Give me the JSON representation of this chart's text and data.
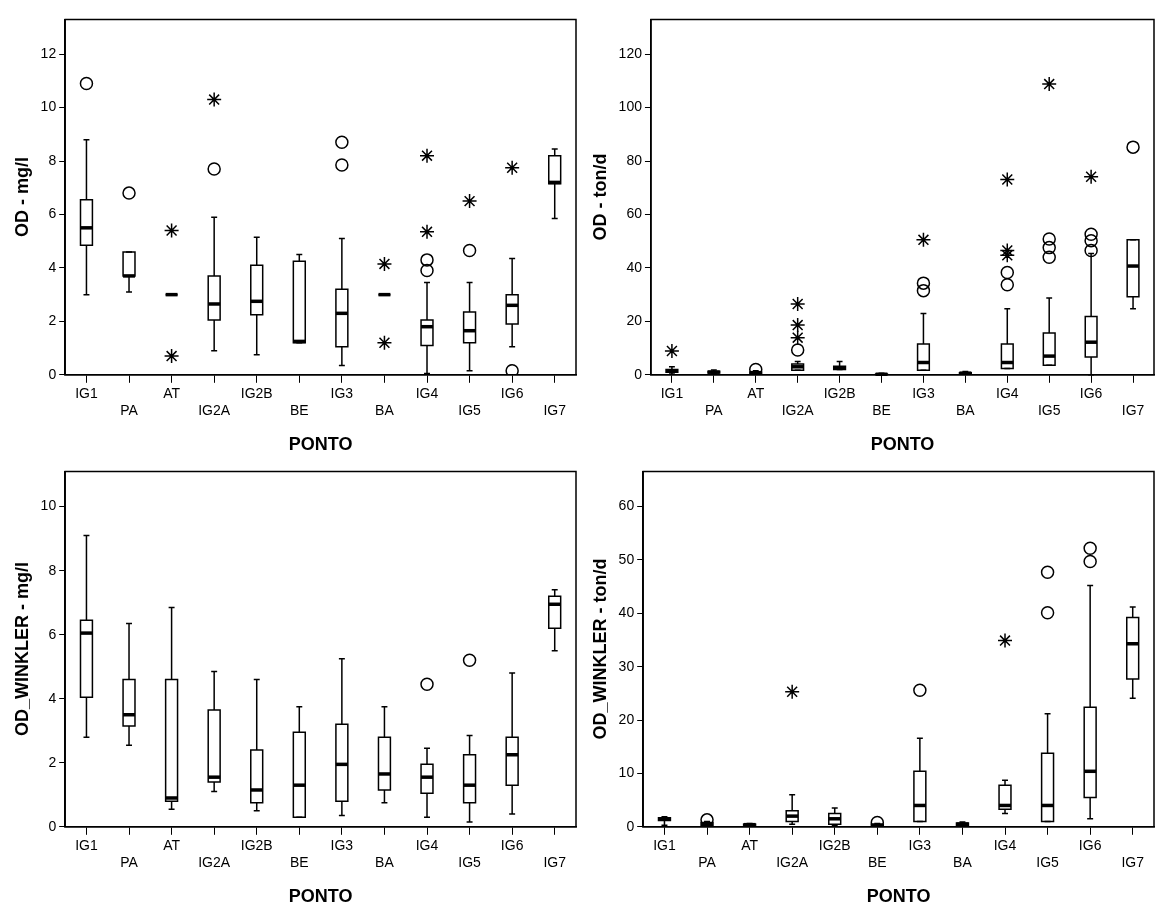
{
  "chart_data": [
    {
      "type": "box",
      "xlabel": "PONTO",
      "ylabel": "OD - mg/l",
      "categories": [
        "IG1",
        "PA",
        "AT",
        "IG2A",
        "IG2B",
        "BE",
        "IG3",
        "BA",
        "IG4",
        "IG5",
        "IG6",
        "IG7"
      ],
      "ylim": [
        0,
        13.3
      ],
      "yticks": [
        0,
        2,
        4,
        6,
        8,
        10,
        12
      ],
      "boxes": [
        {
          "low": 3.0,
          "q1": 4.85,
          "median": 5.5,
          "q3": 6.55,
          "high": 8.8,
          "outliers": [
            10.9
          ]
        },
        {
          "low": 3.1,
          "q1": 3.7,
          "median": 3.7,
          "q3": 4.6,
          "high": 4.6,
          "outliers": [
            6.8
          ]
        },
        {
          "low": 3.0,
          "q1": 3.0,
          "median": 3.0,
          "q3": 3.0,
          "high": 3.0
        },
        {
          "low": 0.9,
          "q1": 2.05,
          "median": 2.65,
          "q3": 3.7,
          "high": 5.9,
          "outliers": [
            7.7
          ]
        },
        {
          "low": 0.75,
          "q1": 2.25,
          "median": 2.75,
          "q3": 4.1,
          "high": 5.15
        },
        {
          "low": 1.2,
          "q1": 1.2,
          "median": 1.25,
          "q3": 4.25,
          "high": 4.5
        },
        {
          "low": 0.35,
          "q1": 1.05,
          "median": 2.3,
          "q3": 3.2,
          "high": 5.1,
          "outliers": [
            8.7,
            7.85
          ]
        },
        {
          "low": 3.0,
          "q1": 3.0,
          "median": 3.0,
          "q3": 3.0,
          "high": 3.0
        },
        {
          "low": 0.05,
          "q1": 1.1,
          "median": 1.8,
          "q3": 2.05,
          "high": 3.45,
          "outliers": [
            4.3,
            3.9
          ]
        },
        {
          "low": 0.15,
          "q1": 1.2,
          "median": 1.65,
          "q3": 2.35,
          "high": 3.45,
          "outliers": [
            4.65
          ]
        },
        {
          "low": 1.05,
          "q1": 1.9,
          "median": 2.6,
          "q3": 3.0,
          "high": 4.35,
          "outliers": [
            0.15
          ]
        },
        {
          "low": 5.85,
          "q1": 7.15,
          "median": 7.2,
          "q3": 8.2,
          "high": 8.45
        }
      ],
      "color": "#000000",
      "series": [
        {
          "type": "scatter",
          "marker": "cross",
          "color": "#000000",
          "x": [
            "AT",
            "AT",
            "IG2A",
            "BA",
            "BA",
            "IG4",
            "IG4",
            "IG5",
            "IG6"
          ],
          "values": [
            5.4,
            0.7,
            10.3,
            4.15,
            1.2,
            8.2,
            5.35,
            6.5,
            7.75
          ]
        }
      ]
    },
    {
      "type": "box",
      "xlabel": "PONTO",
      "ylabel": "OD - ton/d",
      "categories": [
        "IG1",
        "PA",
        "AT",
        "IG2A",
        "IG2B",
        "BE",
        "IG3",
        "BA",
        "IG4",
        "IG5",
        "IG6",
        "IG7"
      ],
      "ylim": [
        0,
        133
      ],
      "yticks": [
        0,
        20,
        40,
        60,
        80,
        100,
        120
      ],
      "boxes": [
        {
          "low": 0.3,
          "q1": 1,
          "median": 1.5,
          "q3": 2,
          "high": 3
        },
        {
          "low": 0.3,
          "q1": 0.7,
          "median": 1,
          "q3": 1.3,
          "high": 1.8
        },
        {
          "low": 0.2,
          "q1": 0.5,
          "median": 0.8,
          "q3": 1,
          "high": 1.5,
          "outliers": [
            2
          ]
        },
        {
          "low": 1.7,
          "q1": 1.7,
          "median": 3,
          "q3": 4,
          "high": 5,
          "outliers": [
            9.3
          ]
        },
        {
          "low": 2,
          "q1": 2,
          "median": 2.5,
          "q3": 3.2,
          "high": 5
        },
        {
          "low": 0,
          "q1": 0.1,
          "median": 0.2,
          "q3": 0.3,
          "high": 0.6
        },
        {
          "low": 1.7,
          "q1": 1.7,
          "median": 4.6,
          "q3": 11.5,
          "high": 22.9,
          "outliers": [
            34.3,
            31.5
          ]
        },
        {
          "low": 0.2,
          "q1": 0.4,
          "median": 0.6,
          "q3": 0.8,
          "high": 1.2
        },
        {
          "low": 2.4,
          "q1": 2.4,
          "median": 4.6,
          "q3": 11.5,
          "high": 24.7,
          "outliers": [
            38.3,
            33.7
          ]
        },
        {
          "low": 3.6,
          "q1": 3.6,
          "median": 7,
          "q3": 15.6,
          "high": 28.7,
          "outliers": [
            50.8,
            47.6,
            44
          ]
        },
        {
          "low": 0,
          "q1": 6.7,
          "median": 12.2,
          "q3": 21.8,
          "high": 45.4,
          "outliers": [
            52.6,
            50.2,
            46.5
          ]
        },
        {
          "low": 24.7,
          "q1": 29.2,
          "median": 40.7,
          "q3": 50.5,
          "high": 50.5,
          "outliers": [
            85.2
          ]
        }
      ],
      "color": "#000000",
      "series": [
        {
          "type": "scatter",
          "marker": "cross",
          "color": "#000000",
          "x": [
            "IG1",
            "IG2A",
            "IG2A",
            "IG2A",
            "IG3",
            "IG4",
            "IG4",
            "IG4",
            "IG5",
            "IG6"
          ],
          "values": [
            8.9,
            26.5,
            18.6,
            13.9,
            50.5,
            73.1,
            46.5,
            44.7,
            108.8,
            74.1
          ]
        }
      ]
    },
    {
      "type": "box",
      "xlabel": "PONTO",
      "ylabel": "OD_WINKLER - mg/l",
      "categories": [
        "IG1",
        "PA",
        "AT",
        "IG2A",
        "IG2B",
        "BE",
        "IG3",
        "BA",
        "IG4",
        "IG5",
        "IG6",
        "IG7"
      ],
      "ylim": [
        0,
        11.1
      ],
      "yticks": [
        0,
        2,
        4,
        6,
        8,
        10
      ],
      "boxes": [
        {
          "low": 2.8,
          "q1": 4.05,
          "median": 6.05,
          "q3": 6.45,
          "high": 9.1
        },
        {
          "low": 2.55,
          "q1": 3.15,
          "median": 3.5,
          "q3": 4.6,
          "high": 6.35
        },
        {
          "low": 0.55,
          "q1": 0.8,
          "median": 0.9,
          "q3": 4.6,
          "high": 6.85
        },
        {
          "low": 1.1,
          "q1": 1.4,
          "median": 1.55,
          "q3": 3.65,
          "high": 4.85
        },
        {
          "low": 0.5,
          "q1": 0.75,
          "median": 1.15,
          "q3": 2.4,
          "high": 4.6
        },
        {
          "low": 0.3,
          "q1": 0.3,
          "median": 1.3,
          "q3": 2.95,
          "high": 3.75
        },
        {
          "low": 0.35,
          "q1": 0.8,
          "median": 1.95,
          "q3": 3.2,
          "high": 5.25
        },
        {
          "low": 0.75,
          "q1": 1.15,
          "median": 1.65,
          "q3": 2.8,
          "high": 3.75
        },
        {
          "low": 0.3,
          "q1": 1.05,
          "median": 1.55,
          "q3": 1.95,
          "high": 2.45,
          "outliers": [
            4.45
          ]
        },
        {
          "low": 0.15,
          "q1": 0.75,
          "median": 1.3,
          "q3": 2.25,
          "high": 2.85,
          "outliers": [
            5.2
          ]
        },
        {
          "low": 0.4,
          "q1": 1.3,
          "median": 2.25,
          "q3": 2.8,
          "high": 4.8
        },
        {
          "low": 5.5,
          "q1": 6.2,
          "median": 6.95,
          "q3": 7.2,
          "high": 7.4
        }
      ],
      "color": "#000000"
    },
    {
      "type": "box",
      "xlabel": "PONTO",
      "ylabel": "OD_WINKLER - ton/d",
      "categories": [
        "IG1",
        "PA",
        "AT",
        "IG2A",
        "IG2B",
        "BE",
        "IG3",
        "BA",
        "IG4",
        "IG5",
        "IG6",
        "IG7"
      ],
      "ylim": [
        0,
        66.6
      ],
      "yticks": [
        0,
        10,
        20,
        30,
        40,
        50,
        60
      ],
      "boxes": [
        {
          "low": 0.3,
          "q1": 1.2,
          "median": 1.5,
          "q3": 1.7,
          "high": 1.9
        },
        {
          "low": 0.2,
          "q1": 0.3,
          "median": 0.5,
          "q3": 0.8,
          "high": 1,
          "outliers": [
            1.3
          ]
        },
        {
          "low": 0.2,
          "q1": 0.3,
          "median": 0.4,
          "q3": 0.5,
          "high": 0.6
        },
        {
          "low": 0.5,
          "q1": 1,
          "median": 2,
          "q3": 3,
          "high": 6
        },
        {
          "low": 0.3,
          "q1": 0.5,
          "median": 1.5,
          "q3": 2.5,
          "high": 3.5
        },
        {
          "low": 0.1,
          "q1": 0.2,
          "median": 0.3,
          "q3": 0.5,
          "high": 0.6,
          "outliers": [
            0.8
          ]
        },
        {
          "low": 1,
          "q1": 1,
          "median": 4,
          "q3": 10.4,
          "high": 16.6,
          "outliers": [
            25.6
          ]
        },
        {
          "low": 0.2,
          "q1": 0.3,
          "median": 0.5,
          "q3": 0.7,
          "high": 0.9
        },
        {
          "low": 2.5,
          "q1": 3.3,
          "median": 4,
          "q3": 7.8,
          "high": 8.7
        },
        {
          "low": 1,
          "q1": 1,
          "median": 4,
          "q3": 13.8,
          "high": 21.2,
          "outliers": [
            47.7,
            40.1
          ]
        },
        {
          "low": 1.5,
          "q1": 5.5,
          "median": 10.4,
          "q3": 22.4,
          "high": 45.2,
          "outliers": [
            52.2,
            49.7
          ]
        },
        {
          "low": 24.1,
          "q1": 27.7,
          "median": 34.3,
          "q3": 39.2,
          "high": 41.2
        }
      ],
      "color": "#000000",
      "series": [
        {
          "type": "scatter",
          "marker": "cross",
          "color": "#000000",
          "x": [
            "IG2A",
            "IG4"
          ],
          "values": [
            25.3,
            34.9
          ]
        }
      ]
    }
  ]
}
